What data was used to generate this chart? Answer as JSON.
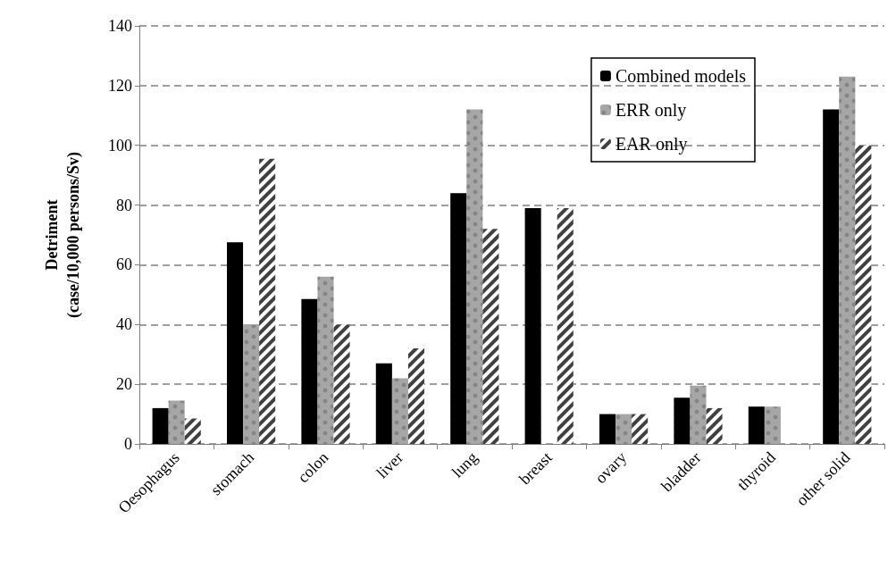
{
  "chart_data": {
    "type": "bar",
    "ylabel": "Detriment\n(case/10,000 persons/Sv)",
    "categories": [
      "Oesophagus",
      "stomach",
      "colon",
      "liver",
      "lung",
      "breast",
      "ovary",
      "bladder",
      "thyroid",
      "other solid"
    ],
    "series": [
      {
        "name": "Combined models",
        "color": "#000000",
        "values": [
          12,
          67.5,
          48.5,
          27,
          84,
          79,
          10,
          15.5,
          12.5,
          112
        ]
      },
      {
        "name": "ERR only",
        "color": "#a6a6a6",
        "values": [
          14.5,
          40,
          56,
          22,
          112,
          null,
          10,
          19.5,
          12.5,
          123
        ]
      },
      {
        "name": "EAR only",
        "color": "#404040",
        "values": [
          8.5,
          95.5,
          40,
          32,
          72,
          79,
          10,
          12,
          null,
          100
        ]
      }
    ],
    "ylim": [
      0,
      140
    ],
    "yticks": [
      0,
      20,
      40,
      60,
      80,
      100,
      120,
      140
    ],
    "grid": "y",
    "legend": "top right"
  }
}
